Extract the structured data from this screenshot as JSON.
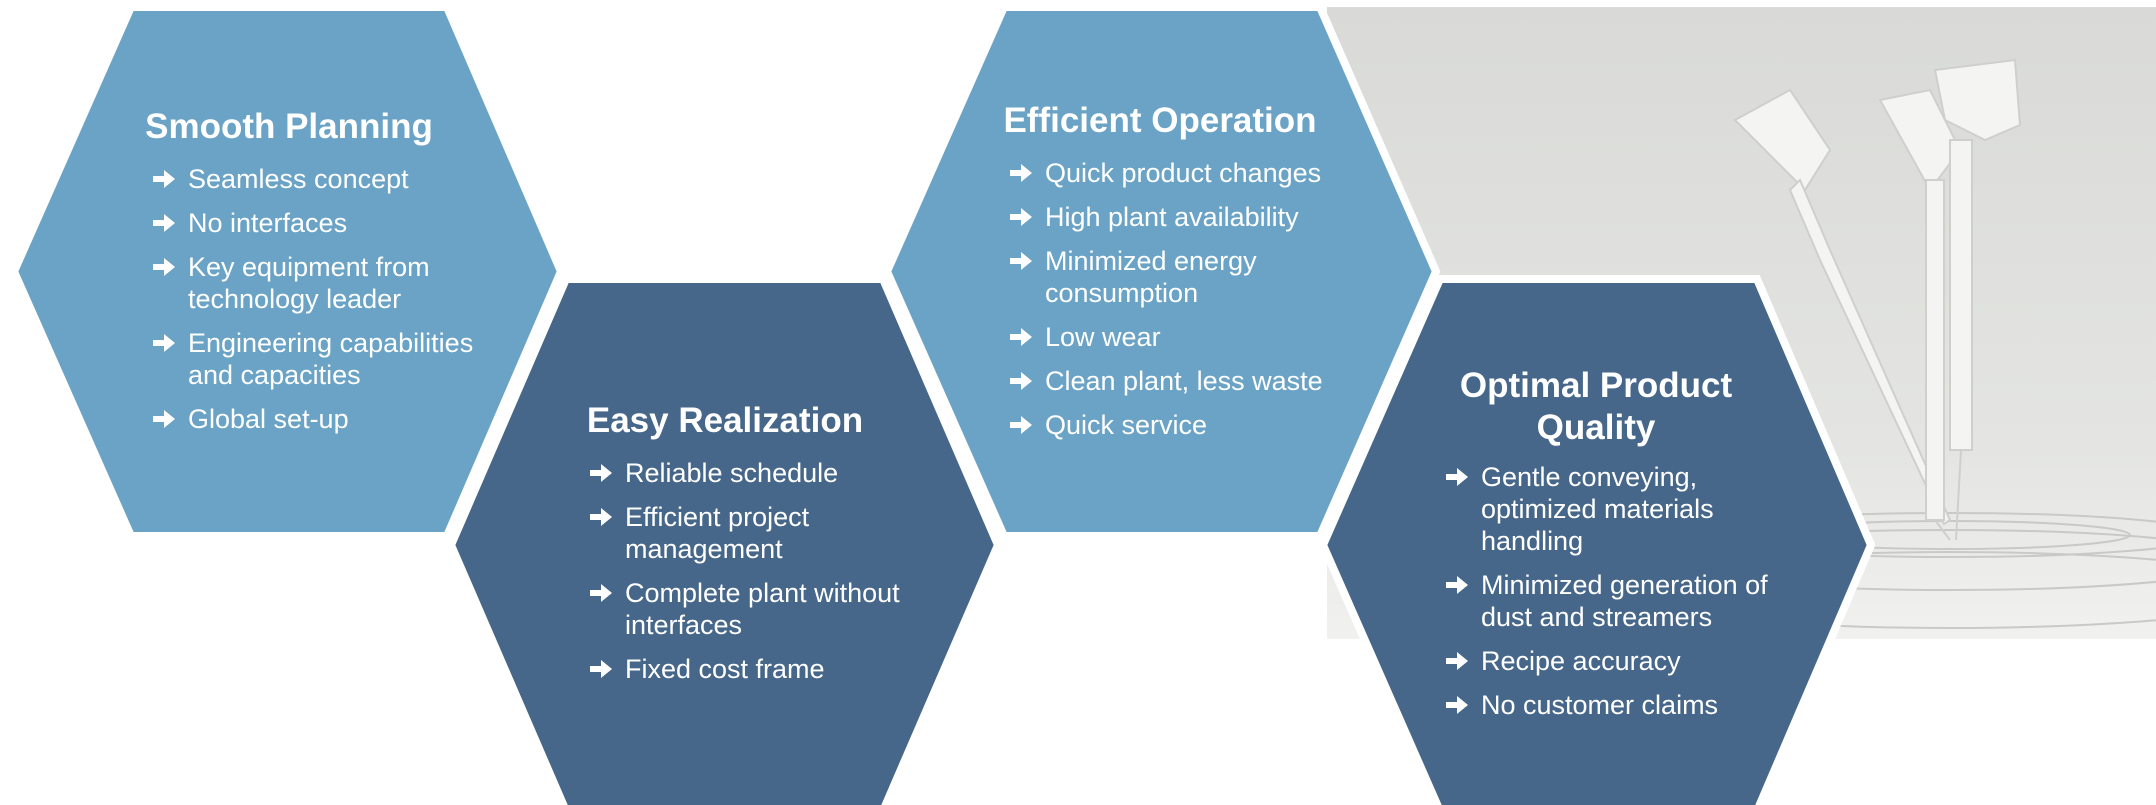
{
  "hexagons": [
    {
      "title": "Smooth Planning",
      "items": [
        "Seamless concept",
        "No interfaces",
        "Key equipment from technology leader",
        "Engineering capabilities and capacities",
        "Global set-up"
      ]
    },
    {
      "title": "Easy Realization",
      "items": [
        "Reliable schedule",
        "Efficient project management",
        "Complete plant without interfaces",
        "Fixed cost frame"
      ]
    },
    {
      "title": "Efficient Operation",
      "items": [
        "Quick product changes",
        "High plant availability",
        "Minimized energy consumption",
        "Low wear",
        "Clean plant, less waste",
        "Quick service"
      ]
    },
    {
      "title": "Optimal Product Quality",
      "items": [
        "Gentle conveying, optimized materials handling",
        "Minimized generation of dust and streamers",
        "Recipe accuracy",
        "No customer claims"
      ]
    }
  ]
}
